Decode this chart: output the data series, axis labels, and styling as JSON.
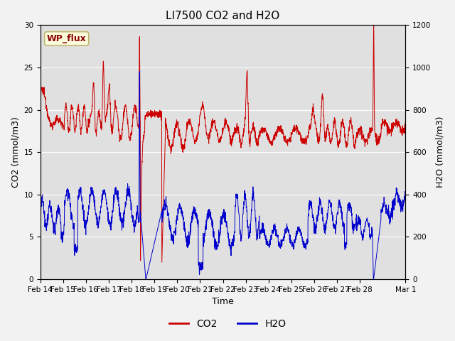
{
  "title": "LI7500 CO2 and H2O",
  "xlabel": "Time",
  "ylabel_left": "CO2 (mmol/m3)",
  "ylabel_right": "H2O (mmol/m3)",
  "ylim_left": [
    0,
    30
  ],
  "ylim_right": [
    0,
    1200
  ],
  "yticks_left": [
    0,
    5,
    10,
    15,
    20,
    25,
    30
  ],
  "yticks_right": [
    0,
    200,
    400,
    600,
    800,
    1000,
    1200
  ],
  "plot_bg_color": "#e0e0e0",
  "fig_bg_color": "#f2f2f2",
  "co2_color": "#cc0000",
  "h2o_color": "#0000cc",
  "legend_label_co2": "CO2",
  "legend_label_h2o": "H2O",
  "site_label": "WP_flux",
  "n_points": 2000,
  "title_fontsize": 11,
  "label_fontsize": 9,
  "tick_fontsize": 7.5,
  "legend_fontsize": 10
}
